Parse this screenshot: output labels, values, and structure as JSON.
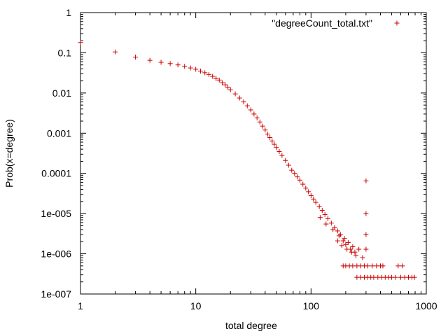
{
  "chart_data": {
    "type": "scatter",
    "xlabel": "total degree",
    "ylabel": "Prob(x=degree)",
    "x_scale": "log",
    "y_scale": "log",
    "xlim": [
      1,
      1000
    ],
    "ylim": [
      1e-07,
      1
    ],
    "x_ticks": [
      {
        "value": 1,
        "label": "1"
      },
      {
        "value": 10,
        "label": "10"
      },
      {
        "value": 100,
        "label": "100"
      },
      {
        "value": 1000,
        "label": "1000"
      }
    ],
    "y_ticks": [
      {
        "value": 1,
        "label": "1"
      },
      {
        "value": 0.1,
        "label": "0.1"
      },
      {
        "value": 0.01,
        "label": "0.01"
      },
      {
        "value": 0.001,
        "label": "0.001"
      },
      {
        "value": 0.0001,
        "label": "0.0001"
      },
      {
        "value": 1e-05,
        "label": "1e-005"
      },
      {
        "value": 1e-06,
        "label": "1e-006"
      },
      {
        "value": 1e-07,
        "label": "1e-007"
      }
    ],
    "grid": false,
    "legend_position": "top-right",
    "marker": "plus",
    "color": "#cc0000",
    "series": [
      {
        "name": "\"degreeCount_total.txt\"",
        "points": [
          [
            1,
            0.18
          ],
          [
            2,
            0.105
          ],
          [
            3,
            0.078
          ],
          [
            4,
            0.065
          ],
          [
            5,
            0.058
          ],
          [
            6,
            0.054
          ],
          [
            7,
            0.05
          ],
          [
            8,
            0.046
          ],
          [
            9,
            0.042
          ],
          [
            10,
            0.039
          ],
          [
            11,
            0.035
          ],
          [
            12,
            0.032
          ],
          [
            13,
            0.029
          ],
          [
            14,
            0.026
          ],
          [
            15,
            0.023
          ],
          [
            16,
            0.021
          ],
          [
            17,
            0.018
          ],
          [
            18,
            0.016
          ],
          [
            19,
            0.014
          ],
          [
            20,
            0.012
          ],
          [
            22,
            0.0095
          ],
          [
            24,
            0.0075
          ],
          [
            26,
            0.006
          ],
          [
            28,
            0.0048
          ],
          [
            30,
            0.0038
          ],
          [
            32,
            0.003
          ],
          [
            34,
            0.0024
          ],
          [
            36,
            0.0019
          ],
          [
            38,
            0.0015
          ],
          [
            40,
            0.0012
          ],
          [
            42,
            0.00095
          ],
          [
            44,
            0.00078
          ],
          [
            46,
            0.00064
          ],
          [
            48,
            0.00053
          ],
          [
            50,
            0.00044
          ],
          [
            53,
            0.00035
          ],
          [
            56,
            0.00028
          ],
          [
            60,
            0.00021
          ],
          [
            64,
            0.00016
          ],
          [
            68,
            0.00012
          ],
          [
            72,
            0.0001
          ],
          [
            76,
            8.2e-05
          ],
          [
            80,
            6.8e-05
          ],
          [
            85,
            5.4e-05
          ],
          [
            90,
            4.3e-05
          ],
          [
            95,
            3.5e-05
          ],
          [
            100,
            2.8e-05
          ],
          [
            105,
            2.3e-05
          ],
          [
            110,
            1.9e-05
          ],
          [
            118,
            1.5e-05
          ],
          [
            125,
            1.2e-05
          ],
          [
            132,
            9.5e-06
          ],
          [
            140,
            7.5e-06
          ],
          [
            150,
            5.8e-06
          ],
          [
            160,
            4.5e-06
          ],
          [
            170,
            3.7e-06
          ],
          [
            180,
            3e-06
          ],
          [
            195,
            2.4e-06
          ],
          [
            210,
            1.9e-06
          ],
          [
            230,
            1.5e-06
          ],
          [
            120,
            8e-06
          ],
          [
            135,
            5.5e-06
          ],
          [
            155,
            4e-06
          ],
          [
            175,
            2.8e-06
          ],
          [
            190,
            2.1e-06
          ],
          [
            200,
            1.7e-06
          ],
          [
            220,
            1.3e-06
          ],
          [
            240,
            1.1e-06
          ],
          [
            260,
            1.3e-06
          ],
          [
            280,
            8e-07
          ],
          [
            300,
            6.5e-05
          ],
          [
            300,
            1e-05
          ],
          [
            300,
            3e-06
          ],
          [
            300,
            1.3e-06
          ],
          [
            170,
            2.1e-06
          ],
          [
            185,
            1.6e-06
          ],
          [
            205,
            1.3e-06
          ],
          [
            225,
            1.1e-06
          ],
          [
            245,
            9e-07
          ],
          [
            190,
            5e-07
          ],
          [
            200,
            5e-07
          ],
          [
            215,
            5e-07
          ],
          [
            230,
            5e-07
          ],
          [
            250,
            5e-07
          ],
          [
            270,
            5e-07
          ],
          [
            290,
            5e-07
          ],
          [
            310,
            5e-07
          ],
          [
            340,
            5e-07
          ],
          [
            370,
            5e-07
          ],
          [
            400,
            5e-07
          ],
          [
            420,
            5e-07
          ],
          [
            570,
            5e-07
          ],
          [
            620,
            5e-07
          ],
          [
            250,
            2.6e-07
          ],
          [
            270,
            2.6e-07
          ],
          [
            290,
            2.6e-07
          ],
          [
            310,
            2.6e-07
          ],
          [
            330,
            2.6e-07
          ],
          [
            350,
            2.6e-07
          ],
          [
            380,
            2.6e-07
          ],
          [
            410,
            2.6e-07
          ],
          [
            440,
            2.6e-07
          ],
          [
            470,
            2.6e-07
          ],
          [
            500,
            2.6e-07
          ],
          [
            540,
            2.6e-07
          ],
          [
            600,
            2.6e-07
          ],
          [
            650,
            2.6e-07
          ],
          [
            700,
            2.6e-07
          ],
          [
            750,
            2.6e-07
          ],
          [
            790,
            2.6e-07
          ]
        ]
      }
    ]
  }
}
